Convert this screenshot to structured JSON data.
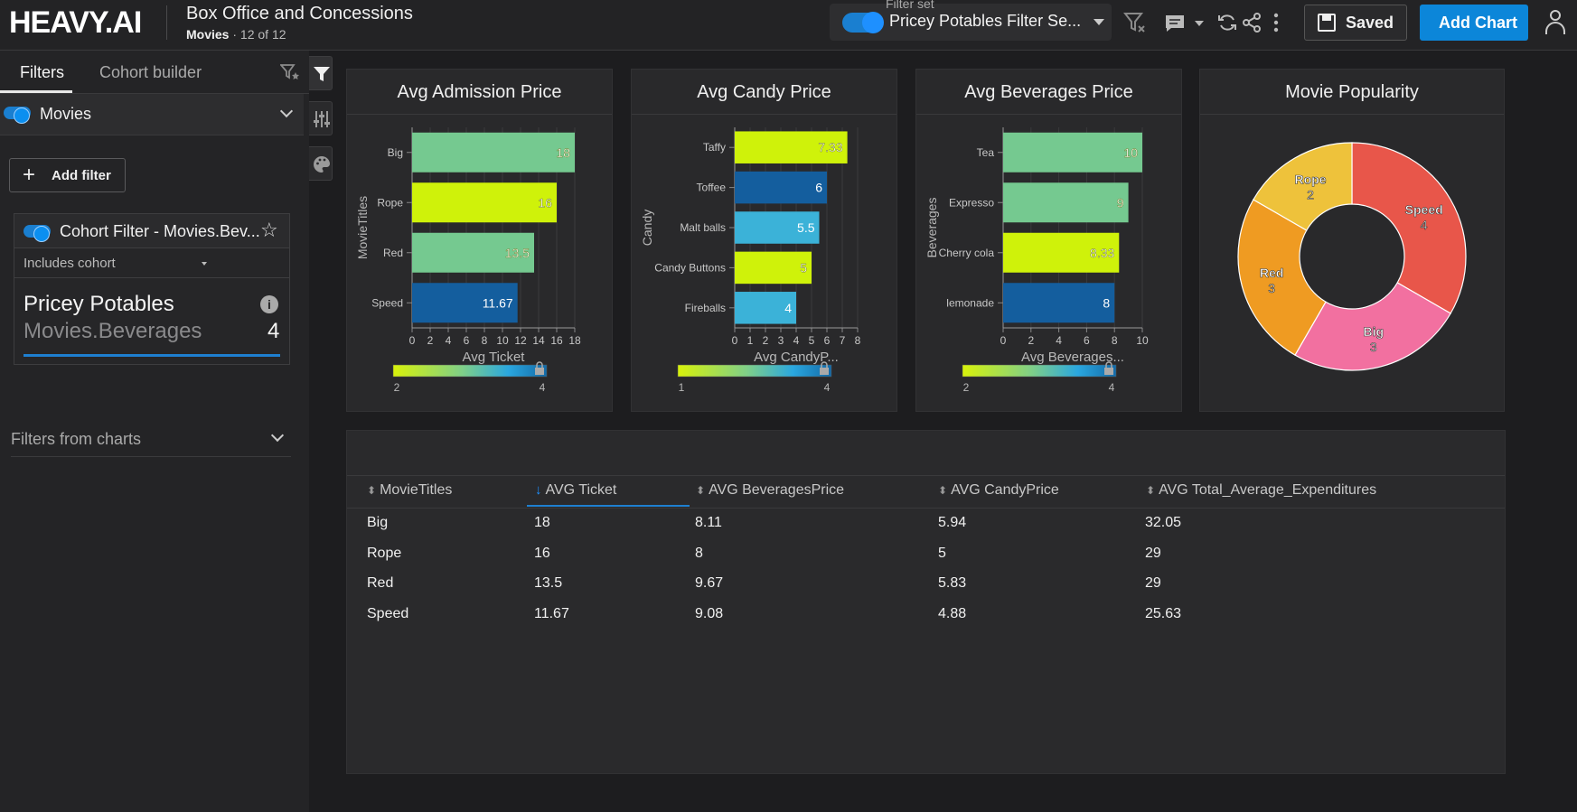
{
  "app": {
    "logo": "HEAVY.AI",
    "dashboard_title": "Box Office and Concessions",
    "dashboard_source": "Movies",
    "dashboard_count": "12 of 12"
  },
  "toolbar": {
    "filter_set_label": "Filter set",
    "filter_set_name": "Pricey Potables Filter Se...",
    "saved_label": "Saved",
    "add_chart_label": "Add Chart",
    "accent_color": "#0c86d9"
  },
  "left_panel": {
    "tabs": [
      {
        "label": "Filters",
        "active": true
      },
      {
        "label": "Cohort builder",
        "active": false
      }
    ],
    "source_filter": "Movies",
    "add_filter_label": "Add filter",
    "cohort_filter": {
      "title": "Cohort Filter - Movies.Bev...",
      "mode": "Includes cohort",
      "name": "Pricey Potables",
      "field": "Movies.Beverages",
      "count": "4"
    },
    "filters_from_charts_label": "Filters from charts"
  },
  "charts": [
    {
      "title": "Avg Admission Price",
      "chart_data": {
        "type": "bar",
        "orientation": "horizontal",
        "categories": [
          "Big",
          "Rope",
          "Red",
          "Speed"
        ],
        "values": [
          18,
          16,
          13.5,
          11.67
        ],
        "value_labels": [
          "18",
          "16",
          "13.5",
          "11.67"
        ],
        "colors": [
          "#75c990",
          "#cff20a",
          "#75c990",
          "#145e9e"
        ],
        "ylabel": "MovieTitles",
        "xlabel": "Avg Ticket",
        "xlim": [
          0,
          18
        ],
        "ticks": [
          "0",
          "2",
          "4",
          "6",
          "8",
          "10",
          "12",
          "14",
          "16",
          "18"
        ],
        "legend_min": "2",
        "legend_max": "4"
      }
    },
    {
      "title": "Avg Candy Price",
      "chart_data": {
        "type": "bar",
        "orientation": "horizontal",
        "categories": [
          "Taffy",
          "Toffee",
          "Malt balls",
          "Candy Buttons",
          "Fireballs"
        ],
        "values": [
          7.33,
          6,
          5.5,
          5,
          4
        ],
        "value_labels": [
          "7.33",
          "6",
          "5.5",
          "5",
          "4"
        ],
        "colors": [
          "#cff20a",
          "#145e9e",
          "#3bb2d8",
          "#cff20a",
          "#3bb2d8"
        ],
        "ylabel": "Candy",
        "xlabel": "Avg CandyP...",
        "xlim": [
          0,
          8
        ],
        "ticks": [
          "0",
          "1",
          "2",
          "3",
          "4",
          "5",
          "6",
          "7",
          "8"
        ],
        "legend_min": "1",
        "legend_max": "4"
      }
    },
    {
      "title": "Avg Beverages Price",
      "chart_data": {
        "type": "bar",
        "orientation": "horizontal",
        "categories": [
          "Tea",
          "Expresso",
          "Cherry cola",
          "lemonade"
        ],
        "values": [
          10,
          9,
          8.33,
          8
        ],
        "value_labels": [
          "10",
          "9",
          "8.33",
          "8"
        ],
        "colors": [
          "#75c990",
          "#75c990",
          "#cff20a",
          "#145e9e"
        ],
        "ylabel": "Beverages",
        "xlabel": "Avg Beverages...",
        "xlim": [
          0,
          10
        ],
        "ticks": [
          "0",
          "2",
          "4",
          "6",
          "8",
          "10"
        ],
        "legend_min": "2",
        "legend_max": "4"
      }
    },
    {
      "title": "Movie Popularity",
      "chart_data": {
        "type": "pie",
        "donut": true,
        "categories": [
          "Speed",
          "Big",
          "Red",
          "Rope"
        ],
        "values": [
          4,
          3,
          3,
          2
        ],
        "colors": [
          "#e8564a",
          "#f270a0",
          "#ef9b22",
          "#eec23b"
        ]
      }
    }
  ],
  "table": {
    "columns": [
      "MovieTitles",
      "AVG Ticket",
      "AVG BeveragesPrice",
      "AVG CandyPrice",
      "AVG Total_Average_Expenditures"
    ],
    "sorted_column": 1,
    "rows": [
      [
        "Big",
        "18",
        "8.11",
        "5.94",
        "32.05"
      ],
      [
        "Rope",
        "16",
        "8",
        "5",
        "29"
      ],
      [
        "Red",
        "13.5",
        "9.67",
        "5.83",
        "29"
      ],
      [
        "Speed",
        "11.67",
        "9.08",
        "4.88",
        "25.63"
      ]
    ]
  }
}
